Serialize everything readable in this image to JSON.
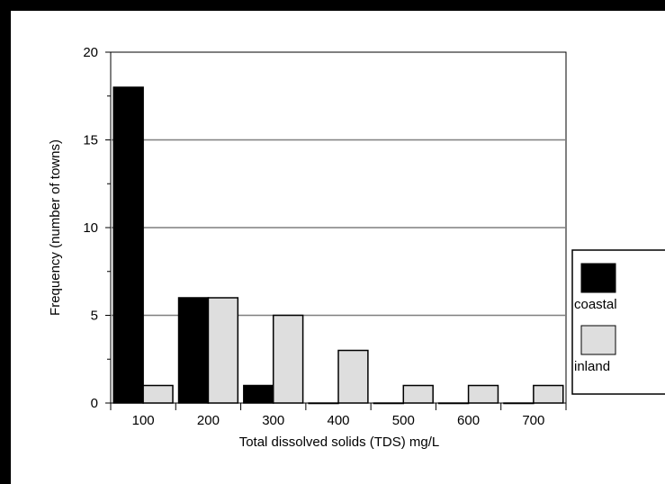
{
  "chart_data": {
    "type": "bar",
    "title": "",
    "xlabel": "Total dissolved solids (TDS) mg/L",
    "ylabel": "Frequency (number of towns)",
    "categories": [
      "100",
      "200",
      "300",
      "400",
      "500",
      "600",
      "700"
    ],
    "ylim": [
      0,
      20
    ],
    "yticks": [
      "0",
      "5",
      "10",
      "15",
      "20"
    ],
    "grid": true,
    "legend_position": "right",
    "series": [
      {
        "name": "coastal",
        "color": "#000000",
        "values": [
          18,
          6,
          1,
          0,
          0,
          0,
          0
        ]
      },
      {
        "name": "inland",
        "color": "#dedede",
        "values": [
          1,
          6,
          5,
          3,
          1,
          1,
          1
        ]
      }
    ]
  }
}
